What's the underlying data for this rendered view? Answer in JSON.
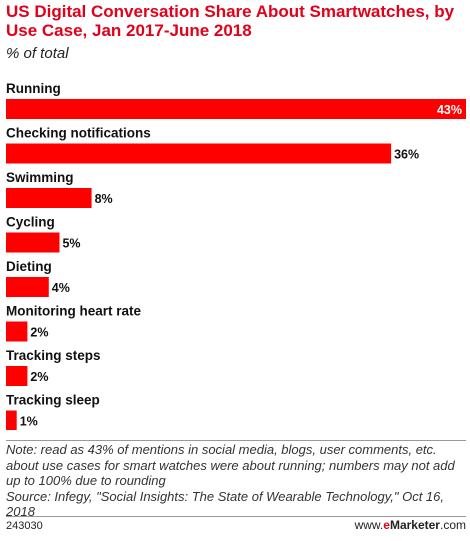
{
  "title": "US Digital Conversation Share About Smartwatches, by Use Case, Jan 2017-June 2018",
  "subtitle": "% of total",
  "chart_data": {
    "type": "bar",
    "orientation": "horizontal",
    "categories": [
      "Running",
      "Checking notifications",
      "Swimming",
      "Cycling",
      "Dieting",
      "Monitoring heart rate",
      "Tracking steps",
      "Tracking sleep"
    ],
    "values": [
      43,
      36,
      8,
      5,
      4,
      2,
      2,
      1
    ],
    "value_labels": [
      "43%",
      "36%",
      "8%",
      "5%",
      "4%",
      "2%",
      "2%",
      "1%"
    ],
    "unit": "%",
    "xlim": [
      0,
      43
    ],
    "bar_color": "#ff0000",
    "grid": false,
    "legend": "none"
  },
  "note": "Note: read as 43% of mentions in social media, blogs, user comments, etc. about use cases for smart watches were about running; numbers may not add up to 100% due to rounding",
  "source": "Source: Infegy, \"Social Insights: The State of Wearable Technology,\" Oct 16, 2018",
  "footer": {
    "chart_id": "243030",
    "brand_prefix": "www.",
    "brand_e": "e",
    "brand_main": "Marketer",
    "brand_suffix": ".com"
  },
  "colors": {
    "accent": "#e2001a",
    "bar": "#ff0000"
  }
}
